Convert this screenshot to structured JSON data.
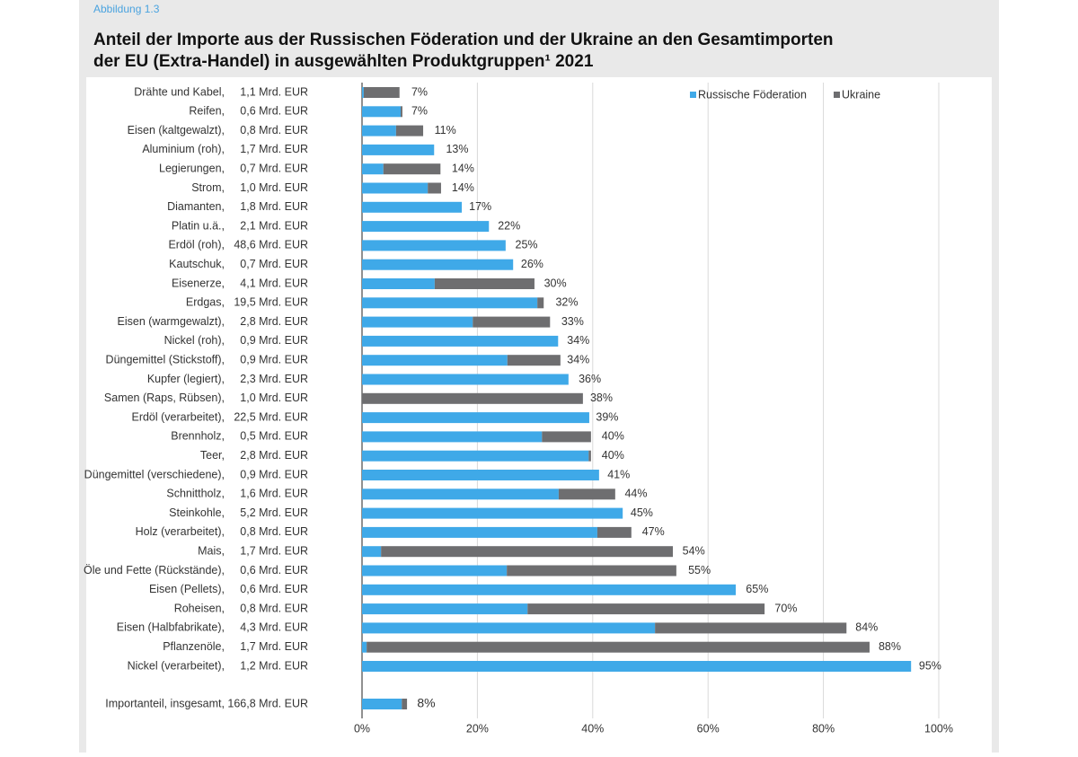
{
  "header": "Abbildung 1.3",
  "chart_data": {
    "type": "stacked_barh",
    "title_lines": [
      "Anteil der Importe aus der Russischen Föderation und der Ukraine an den Gesamtimporten",
      "der EU (Extra-Handel) in ausgewählten Produktgruppen¹ 2021"
    ],
    "categories": [
      "Drähte und Kabel,",
      "Reifen,",
      "Eisen (kaltgewalzt),",
      "Aluminium (roh),",
      "Legierungen,",
      "Strom,",
      "Diamanten,",
      "Platin u.ä.,",
      "Erdöl (roh),",
      "Kautschuk,",
      "Eisenerze,",
      "Erdgas,",
      "Eisen (warmgewalzt),",
      "Nickel (roh),",
      "Düngemittel (Stickstoff),",
      "Kupfer (legiert),",
      "Samen (Raps, Rübsen),",
      "Erdöl (verarbeitet),",
      "Brennholz,",
      "Teer,",
      "Düngemittel (verschiedene),",
      "Schnittholz,",
      "Steinkohle,",
      "Holz (verarbeitet),",
      "Mais,",
      "Öle und Fette (Rückstände),",
      "Eisen (Pellets),",
      "Roheisen,",
      "Eisen (Halbfabrikate),",
      "Pflanzenöle,",
      "Nickel (verarbeitet),",
      "Importanteil, insgesamt,"
    ],
    "import_volumes": [
      "1,1 Mrd. EUR",
      "0,6 Mrd. EUR",
      "0,8 Mrd. EUR",
      "1,7 Mrd. EUR",
      "0,7 Mrd. EUR",
      "1,0 Mrd. EUR",
      "1,8 Mrd. EUR",
      "2,1 Mrd. EUR",
      "48,6 Mrd. EUR",
      "0,7 Mrd. EUR",
      "4,1 Mrd. EUR",
      "19,5 Mrd. EUR",
      "2,8 Mrd. EUR",
      "0,9 Mrd. EUR",
      "0,9 Mrd. EUR",
      "2,3 Mrd. EUR",
      "1,0 Mrd. EUR",
      "22,5 Mrd. EUR",
      "0,5 Mrd. EUR",
      "2,8 Mrd. EUR",
      "0,9 Mrd. EUR",
      "1,6 Mrd. EUR",
      "5,2 Mrd. EUR",
      "0,8 Mrd. EUR",
      "1,7 Mrd. EUR",
      "0,6 Mrd. EUR",
      "0,6 Mrd. EUR",
      "0,8 Mrd. EUR",
      "4,3 Mrd. EUR",
      "1,7 Mrd. EUR",
      "1,2 Mrd. EUR",
      "166,8 Mrd. EUR"
    ],
    "series": [
      {
        "name": "Russische Föderation",
        "color": "#3fa9e8",
        "values": [
          0.3,
          6.7,
          5.9,
          12.5,
          3.7,
          11.4,
          17.3,
          22.0,
          24.9,
          26.2,
          12.6,
          30.4,
          19.2,
          34.0,
          25.2,
          35.8,
          0,
          39.4,
          31.2,
          39.3,
          41.1,
          34.1,
          45.2,
          40.8,
          3.3,
          25.1,
          64.8,
          28.7,
          50.8,
          0.8,
          95.2,
          6.9
        ]
      },
      {
        "name": "Ukraine",
        "color": "#6e6e70",
        "values": [
          6.2,
          0.3,
          4.7,
          0,
          9.9,
          2.3,
          0,
          0,
          0,
          0,
          17.3,
          1.1,
          13.4,
          0,
          9.2,
          0,
          38.3,
          0,
          8.5,
          0.4,
          0,
          9.8,
          0,
          5.9,
          50.6,
          29.4,
          0,
          41.1,
          33.2,
          87.2,
          0,
          0.9
        ]
      }
    ],
    "totals": {
      "values": [
        7,
        7,
        11,
        13,
        14,
        14,
        17,
        22,
        25,
        26,
        30,
        32,
        33,
        34,
        34,
        36,
        38,
        39,
        40,
        40,
        41,
        44,
        45,
        47,
        54,
        55,
        65,
        70,
        84,
        88,
        95,
        8
      ],
      "value_labels": [
        "7%",
        "7%",
        "11%",
        "13%",
        "14%",
        "14%",
        "17%",
        "22%",
        "25%",
        "26%",
        "30%",
        "32%",
        "33%",
        "34%",
        "34%",
        "36%",
        "38%",
        "39%",
        "40%",
        "40%",
        "41%",
        "44%",
        "45%",
        "47%",
        "54%",
        "55%",
        "65%",
        "70%",
        "84%",
        "88%",
        "95%",
        "8%"
      ]
    },
    "xlim": [
      0,
      100
    ],
    "xticks": [
      {
        "value": 0,
        "label": "0%"
      },
      {
        "value": 20,
        "label": "20%"
      },
      {
        "value": 40,
        "label": "40%"
      },
      {
        "value": 60,
        "label": "60%"
      },
      {
        "value": 80,
        "label": "80%"
      },
      {
        "value": 100,
        "label": "100%"
      }
    ],
    "grid": true,
    "legend": "top-right"
  }
}
